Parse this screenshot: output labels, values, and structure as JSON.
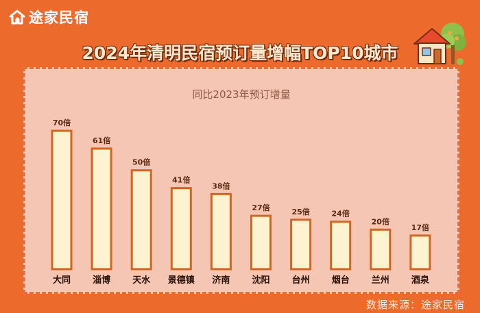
{
  "brand": {
    "name": "途家民宿",
    "icon": "house-logo-icon"
  },
  "title": "2024年清明民宿预订量增幅TOP10城市",
  "source": "数据来源：途家民宿",
  "colors": {
    "background": "#ec6a2c",
    "panel": "#f5c6b3",
    "bar_fill": "#fef3d1",
    "bar_stroke": "#d2651f",
    "label_text": "#5a2a14"
  },
  "chart_data": {
    "type": "bar",
    "title": "同比2023年预订增量",
    "categories": [
      "大同",
      "淄博",
      "天水",
      "景德镇",
      "济南",
      "沈阳",
      "台州",
      "烟台",
      "兰州",
      "酒泉"
    ],
    "values": [
      70,
      61,
      50,
      41,
      38,
      27,
      25,
      24,
      20,
      17
    ],
    "value_labels": [
      "70倍",
      "61倍",
      "50倍",
      "41倍",
      "38倍",
      "27倍",
      "25倍",
      "24倍",
      "20倍",
      "17倍"
    ],
    "unit": "倍",
    "ylim": [
      0,
      70
    ],
    "grid": false,
    "legend": "none"
  }
}
